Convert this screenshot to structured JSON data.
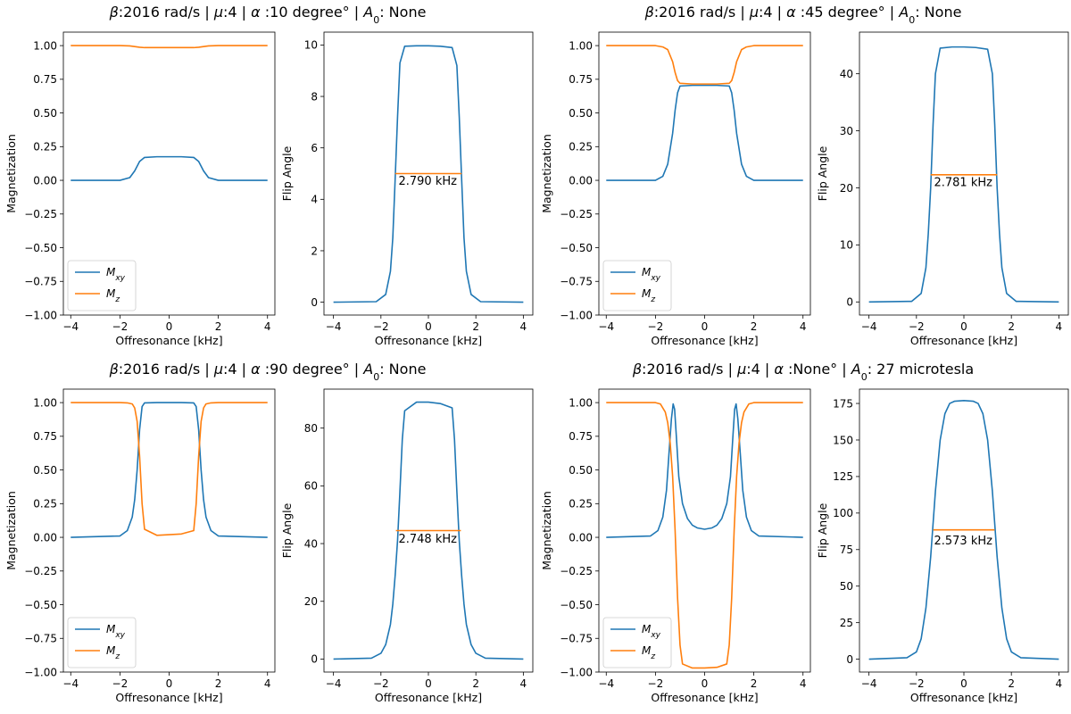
{
  "colors": {
    "mxy": "#1f77b4",
    "mz": "#ff7f0e"
  },
  "titles": [
    {
      "pre": "β",
      "mid": ":2016 rad/s  |  ",
      "mu": "μ",
      "mid2": ":4  |  ",
      "alpha": "α",
      "post": " :10 degree° | ",
      "a": "A",
      "asub": "0",
      "tail": ": None"
    },
    {
      "pre": "β",
      "mid": ":2016 rad/s  |  ",
      "mu": "μ",
      "mid2": ":4  |  ",
      "alpha": "α",
      "post": " :45 degree° | ",
      "a": "A",
      "asub": "0",
      "tail": ": None"
    },
    {
      "pre": "β",
      "mid": ":2016 rad/s  |  ",
      "mu": "μ",
      "mid2": ":4  |  ",
      "alpha": "α",
      "post": " :90 degree° | ",
      "a": "A",
      "asub": "0",
      "tail": ": None"
    },
    {
      "pre": "β",
      "mid": ":2016 rad/s  |  ",
      "mu": "μ",
      "mid2": ":4  |  ",
      "alpha": "α",
      "post": " :None° | ",
      "a": "A",
      "asub": "0",
      "tail": ": 27 microtesla"
    }
  ],
  "chart_data": [
    {
      "type": "line",
      "panel": "magnetization",
      "group": 0,
      "xlabel": "Offresonance [kHz]",
      "ylabel": "Magnetization",
      "xlim": [
        -4.3,
        4.3
      ],
      "ylim": [
        -1.0,
        1.1
      ],
      "xticks": [
        "−4",
        "−2",
        "0",
        "2",
        "4"
      ],
      "xtick_values": [
        -4,
        -2,
        0,
        2,
        4
      ],
      "yticks": [
        "−1.00",
        "−0.75",
        "−0.50",
        "−0.25",
        "0.00",
        "0.25",
        "0.50",
        "0.75",
        "1.00"
      ],
      "ytick_values": [
        -1,
        -0.75,
        -0.5,
        -0.25,
        0,
        0.25,
        0.5,
        0.75,
        1
      ],
      "legend": {
        "placement": "lower-left",
        "entries": [
          {
            "base": "M",
            "sub": "xy",
            "key": "mxy"
          },
          {
            "base": "M",
            "sub": "z",
            "key": "mz"
          }
        ]
      },
      "series": [
        {
          "key": "mxy",
          "x": [
            -4,
            -2,
            -1.6,
            -1.4,
            -1.2,
            -1,
            -0.5,
            0,
            0.5,
            1,
            1.2,
            1.4,
            1.6,
            2,
            4
          ],
          "y": [
            0,
            0,
            0.02,
            0.07,
            0.14,
            0.17,
            0.175,
            0.175,
            0.175,
            0.17,
            0.14,
            0.07,
            0.02,
            0,
            0
          ]
        },
        {
          "key": "mz",
          "x": [
            -4,
            -2,
            -1.6,
            -1.4,
            -1.2,
            -1,
            -0.5,
            0,
            0.5,
            1,
            1.2,
            1.4,
            1.6,
            2,
            4
          ],
          "y": [
            1,
            1,
            0.998,
            0.993,
            0.988,
            0.985,
            0.985,
            0.985,
            0.985,
            0.985,
            0.988,
            0.993,
            0.998,
            1,
            1
          ]
        }
      ]
    },
    {
      "type": "line",
      "panel": "flip-angle",
      "group": 0,
      "xlabel": "Offresonance [kHz]",
      "ylabel": "Flip Angle",
      "xlim": [
        -4.4,
        4.4
      ],
      "ylim": [
        -0.5,
        10.5
      ],
      "xticks": [
        "−4",
        "−2",
        "0",
        "2",
        "4"
      ],
      "xtick_values": [
        -4,
        -2,
        0,
        2,
        4
      ],
      "yticks": [
        "0",
        "2",
        "4",
        "6",
        "8",
        "10"
      ],
      "ytick_values": [
        0,
        2,
        4,
        6,
        8,
        10
      ],
      "annotation": {
        "text": "2.790 kHz",
        "x": -1.26,
        "y": 4.7
      },
      "series": [
        {
          "key": "mxy",
          "x": [
            -4,
            -2.2,
            -1.8,
            -1.6,
            -1.5,
            -1.4,
            -1.3,
            -1.2,
            -1,
            -0.5,
            0,
            0.5,
            1,
            1.2,
            1.3,
            1.4,
            1.5,
            1.6,
            1.8,
            2.2,
            4
          ],
          "y": [
            0,
            0.02,
            0.3,
            1.2,
            2.5,
            4.8,
            7.2,
            9.3,
            9.95,
            9.97,
            9.97,
            9.95,
            9.9,
            9.2,
            7.2,
            4.8,
            2.5,
            1.2,
            0.3,
            0.02,
            0
          ]
        },
        {
          "key": "mz",
          "x": [
            -1.4,
            1.4
          ],
          "y": [
            5,
            5
          ]
        }
      ]
    },
    {
      "type": "line",
      "panel": "magnetization",
      "group": 1,
      "xlabel": "Offresonance [kHz]",
      "ylabel": "Magnetization",
      "xlim": [
        -4.3,
        4.3
      ],
      "ylim": [
        -1.0,
        1.1
      ],
      "xticks": [
        "−4",
        "−2",
        "0",
        "2",
        "4"
      ],
      "xtick_values": [
        -4,
        -2,
        0,
        2,
        4
      ],
      "yticks": [
        "−1.00",
        "−0.75",
        "−0.50",
        "−0.25",
        "0.00",
        "0.25",
        "0.50",
        "0.75",
        "1.00"
      ],
      "ytick_values": [
        -1,
        -0.75,
        -0.5,
        -0.25,
        0,
        0.25,
        0.5,
        0.75,
        1
      ],
      "legend": {
        "placement": "lower-left",
        "entries": [
          {
            "base": "M",
            "sub": "xy",
            "key": "mxy"
          },
          {
            "base": "M",
            "sub": "z",
            "key": "mz"
          }
        ]
      },
      "series": [
        {
          "key": "mxy",
          "x": [
            -4,
            -2,
            -1.7,
            -1.5,
            -1.3,
            -1.2,
            -1.1,
            -1,
            -0.5,
            0,
            0.5,
            1,
            1.1,
            1.2,
            1.3,
            1.5,
            1.7,
            2,
            4
          ],
          "y": [
            0,
            0,
            0.03,
            0.12,
            0.35,
            0.52,
            0.65,
            0.7,
            0.705,
            0.705,
            0.705,
            0.7,
            0.65,
            0.52,
            0.35,
            0.12,
            0.03,
            0,
            0
          ]
        },
        {
          "key": "mz",
          "x": [
            -4,
            -2,
            -1.7,
            -1.5,
            -1.3,
            -1.2,
            -1.1,
            -1,
            -0.5,
            0,
            0.5,
            1,
            1.1,
            1.2,
            1.3,
            1.5,
            1.7,
            2,
            4
          ],
          "y": [
            1,
            1,
            0.99,
            0.97,
            0.88,
            0.8,
            0.74,
            0.72,
            0.715,
            0.715,
            0.715,
            0.72,
            0.74,
            0.8,
            0.88,
            0.97,
            0.99,
            1,
            1
          ]
        }
      ]
    },
    {
      "type": "line",
      "panel": "flip-angle",
      "group": 1,
      "xlabel": "Offresonance [kHz]",
      "ylabel": "Flip Angle",
      "xlim": [
        -4.4,
        4.4
      ],
      "ylim": [
        -2.3,
        47.3
      ],
      "xticks": [
        "−4",
        "−2",
        "0",
        "2",
        "4"
      ],
      "xtick_values": [
        -4,
        -2,
        0,
        2,
        4
      ],
      "yticks": [
        "0",
        "10",
        "20",
        "30",
        "40"
      ],
      "ytick_values": [
        0,
        10,
        20,
        30,
        40
      ],
      "annotation": {
        "text": "2.781 kHz",
        "x": -1.26,
        "y": 20.9
      },
      "series": [
        {
          "key": "mxy",
          "x": [
            -4,
            -2.2,
            -1.8,
            -1.6,
            -1.5,
            -1.4,
            -1.3,
            -1.2,
            -1,
            -0.5,
            0,
            0.5,
            1,
            1.2,
            1.3,
            1.4,
            1.5,
            1.6,
            1.8,
            2.2,
            4
          ],
          "y": [
            0,
            0.1,
            1.5,
            6,
            12,
            20,
            31,
            40,
            44.5,
            44.7,
            44.7,
            44.6,
            44.3,
            40,
            31,
            20,
            12,
            6,
            1.5,
            0.1,
            0
          ]
        },
        {
          "key": "mz",
          "x": [
            -1.4,
            1.4
          ],
          "y": [
            22.3,
            22.3
          ]
        }
      ]
    },
    {
      "type": "line",
      "panel": "magnetization",
      "group": 2,
      "xlabel": "Offresonance [kHz]",
      "ylabel": "Magnetization",
      "xlim": [
        -4.3,
        4.3
      ],
      "ylim": [
        -1.0,
        1.1
      ],
      "xticks": [
        "−4",
        "−2",
        "0",
        "2",
        "4"
      ],
      "xtick_values": [
        -4,
        -2,
        0,
        2,
        4
      ],
      "yticks": [
        "−1.00",
        "−0.75",
        "−0.50",
        "−0.25",
        "0.00",
        "0.25",
        "0.50",
        "0.75",
        "1.00"
      ],
      "ytick_values": [
        -1,
        -0.75,
        -0.5,
        -0.25,
        0,
        0.25,
        0.5,
        0.75,
        1
      ],
      "legend": {
        "placement": "lower-left",
        "entries": [
          {
            "base": "M",
            "sub": "xy",
            "key": "mxy"
          },
          {
            "base": "M",
            "sub": "z",
            "key": "mz"
          }
        ]
      },
      "series": [
        {
          "key": "mxy",
          "x": [
            -4,
            -2,
            -1.7,
            -1.5,
            -1.4,
            -1.3,
            -1.2,
            -1.1,
            -1,
            -0.5,
            0,
            0.5,
            1,
            1.1,
            1.2,
            1.3,
            1.4,
            1.5,
            1.7,
            2,
            4
          ],
          "y": [
            0,
            0.01,
            0.05,
            0.15,
            0.28,
            0.5,
            0.8,
            0.97,
            0.998,
            1,
            1,
            1,
            0.998,
            0.97,
            0.8,
            0.5,
            0.28,
            0.15,
            0.05,
            0.01,
            0
          ]
        },
        {
          "key": "mz",
          "x": [
            -4,
            -2,
            -1.7,
            -1.5,
            -1.4,
            -1.3,
            -1.2,
            -1.1,
            -1,
            -0.5,
            0,
            0.5,
            1,
            1.1,
            1.2,
            1.3,
            1.4,
            1.5,
            1.7,
            2,
            4
          ],
          "y": [
            1,
            1,
            0.998,
            0.99,
            0.96,
            0.86,
            0.6,
            0.25,
            0.06,
            0.015,
            0.02,
            0.025,
            0.05,
            0.25,
            0.6,
            0.86,
            0.96,
            0.99,
            0.998,
            1,
            1
          ]
        }
      ]
    },
    {
      "type": "line",
      "panel": "flip-angle",
      "group": 2,
      "xlabel": "Offresonance [kHz]",
      "ylabel": "Flip Angle",
      "xlim": [
        -4.4,
        4.4
      ],
      "ylim": [
        -4.5,
        93.5
      ],
      "xticks": [
        "−4",
        "−2",
        "0",
        "2",
        "4"
      ],
      "xtick_values": [
        -4,
        -2,
        0,
        2,
        4
      ],
      "yticks": [
        "0",
        "20",
        "40",
        "60",
        "80"
      ],
      "ytick_values": [
        0,
        20,
        40,
        60,
        80
      ],
      "annotation": {
        "text": "2.748 kHz",
        "x": -1.26,
        "y": 41.5
      },
      "series": [
        {
          "key": "mxy",
          "x": [
            -4,
            -2.4,
            -2,
            -1.8,
            -1.6,
            -1.5,
            -1.4,
            -1.3,
            -1.2,
            -1.1,
            -1,
            -0.5,
            0,
            0.5,
            1,
            1.1,
            1.2,
            1.3,
            1.4,
            1.5,
            1.6,
            1.8,
            2,
            2.4,
            4
          ],
          "y": [
            0,
            0.3,
            2,
            5,
            12,
            19,
            29,
            41,
            58,
            76,
            86,
            89,
            89,
            88.5,
            87,
            76,
            58,
            41,
            29,
            19,
            12,
            5,
            2,
            0.3,
            0
          ]
        },
        {
          "key": "mz",
          "x": [
            -1.37,
            1.37
          ],
          "y": [
            44.5,
            44.5
          ]
        }
      ]
    },
    {
      "type": "line",
      "panel": "magnetization",
      "group": 3,
      "xlabel": "Offresonance [kHz]",
      "ylabel": "Magnetization",
      "xlim": [
        -4.3,
        4.3
      ],
      "ylim": [
        -1.0,
        1.1
      ],
      "xticks": [
        "−4",
        "−2",
        "0",
        "2",
        "4"
      ],
      "xtick_values": [
        -4,
        -2,
        0,
        2,
        4
      ],
      "yticks": [
        "−1.00",
        "−0.75",
        "−0.50",
        "−0.25",
        "0.00",
        "0.25",
        "0.50",
        "0.75",
        "1.00"
      ],
      "ytick_values": [
        -1,
        -0.75,
        -0.5,
        -0.25,
        0,
        0.25,
        0.5,
        0.75,
        1
      ],
      "legend": {
        "placement": "lower-left",
        "entries": [
          {
            "base": "M",
            "sub": "xy",
            "key": "mxy"
          },
          {
            "base": "M",
            "sub": "z",
            "key": "mz"
          }
        ]
      },
      "series": [
        {
          "key": "mxy",
          "x": [
            -4,
            -2.2,
            -1.9,
            -1.7,
            -1.55,
            -1.45,
            -1.35,
            -1.28,
            -1.22,
            -1.15,
            -1.05,
            -0.9,
            -0.7,
            -0.5,
            -0.3,
            0,
            0.3,
            0.5,
            0.7,
            0.9,
            1.05,
            1.15,
            1.22,
            1.28,
            1.35,
            1.45,
            1.55,
            1.7,
            1.9,
            2.2,
            4
          ],
          "y": [
            0,
            0.01,
            0.05,
            0.15,
            0.35,
            0.62,
            0.88,
            0.99,
            0.95,
            0.75,
            0.45,
            0.25,
            0.14,
            0.09,
            0.07,
            0.06,
            0.07,
            0.09,
            0.14,
            0.25,
            0.45,
            0.75,
            0.95,
            0.99,
            0.88,
            0.62,
            0.35,
            0.15,
            0.05,
            0.01,
            0
          ]
        },
        {
          "key": "mz",
          "x": [
            -4,
            -2,
            -1.8,
            -1.6,
            -1.5,
            -1.4,
            -1.3,
            -1.2,
            -1.1,
            -1,
            -0.9,
            -0.5,
            0,
            0.5,
            0.9,
            1,
            1.1,
            1.2,
            1.3,
            1.4,
            1.5,
            1.6,
            1.8,
            2,
            4
          ],
          "y": [
            1,
            1,
            0.99,
            0.93,
            0.85,
            0.7,
            0.45,
            0.05,
            -0.45,
            -0.8,
            -0.94,
            -0.97,
            -0.97,
            -0.965,
            -0.94,
            -0.8,
            -0.45,
            0.05,
            0.45,
            0.7,
            0.85,
            0.93,
            0.99,
            1,
            1
          ]
        }
      ]
    },
    {
      "type": "line",
      "panel": "flip-angle",
      "group": 3,
      "xlabel": "Offresonance [kHz]",
      "ylabel": "Flip Angle",
      "xlim": [
        -4.4,
        4.4
      ],
      "ylim": [
        -8.8,
        184.8
      ],
      "xticks": [
        "−4",
        "−2",
        "0",
        "2",
        "4"
      ],
      "xtick_values": [
        -4,
        -2,
        0,
        2,
        4
      ],
      "yticks": [
        "0",
        "25",
        "50",
        "75",
        "100",
        "125",
        "150",
        "175"
      ],
      "ytick_values": [
        0,
        25,
        50,
        75,
        100,
        125,
        150,
        175
      ],
      "annotation": {
        "text": "2.573 kHz",
        "x": -1.26,
        "y": 81
      },
      "series": [
        {
          "key": "mxy",
          "x": [
            -4,
            -2.4,
            -2,
            -1.8,
            -1.6,
            -1.4,
            -1.2,
            -1,
            -0.8,
            -0.6,
            -0.4,
            0,
            0.4,
            0.6,
            0.8,
            1,
            1.2,
            1.4,
            1.6,
            1.8,
            2,
            2.4,
            4
          ],
          "y": [
            0,
            1,
            5,
            14,
            35,
            70,
            115,
            150,
            168,
            175,
            176.5,
            177,
            176.5,
            175,
            168,
            150,
            115,
            70,
            35,
            14,
            5,
            1,
            0
          ]
        },
        {
          "key": "mz",
          "x": [
            -1.29,
            1.29
          ],
          "y": [
            88.5,
            88.5
          ]
        }
      ]
    }
  ]
}
